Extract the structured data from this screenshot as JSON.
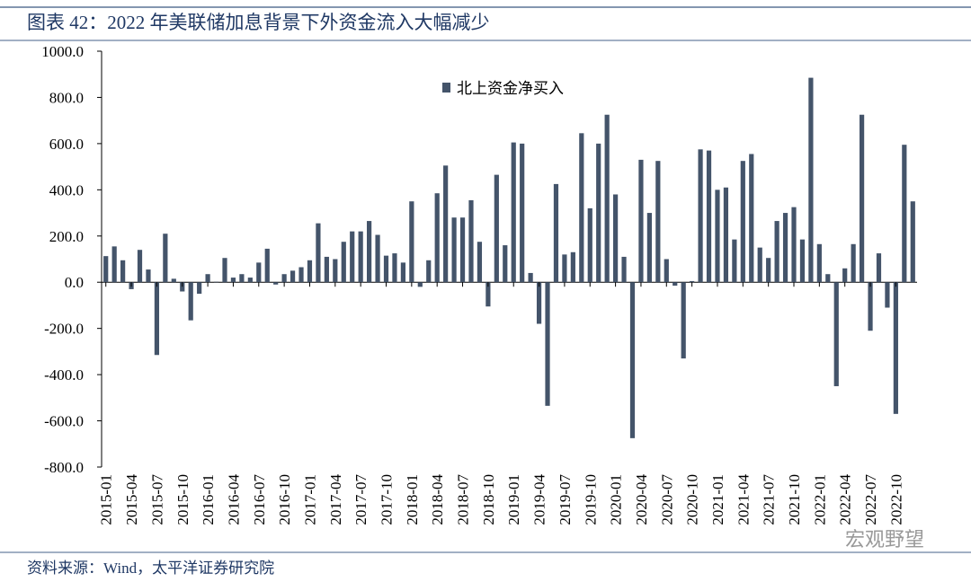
{
  "chart_data": {
    "type": "bar",
    "title": "图表 42：2022 年美联储加息背景下外资金流入大幅减少",
    "source": "资料来源：Wind，太平洋证券研究院",
    "watermark": "宏观野望",
    "categories": [
      "2015-01",
      null,
      null,
      "2015-04",
      null,
      null,
      "2015-07",
      null,
      null,
      "2015-10",
      null,
      null,
      "2016-01",
      null,
      null,
      "2016-04",
      null,
      null,
      "2016-07",
      null,
      null,
      "2016-10",
      null,
      null,
      "2017-01",
      null,
      null,
      "2017-04",
      null,
      null,
      "2017-07",
      null,
      null,
      "2017-10",
      null,
      null,
      "2018-01",
      null,
      null,
      "2018-04",
      null,
      null,
      "2018-07",
      null,
      null,
      "2018-10",
      null,
      null,
      "2019-01",
      null,
      null,
      "2019-04",
      null,
      null,
      "2019-07",
      null,
      null,
      "2019-10",
      null,
      null,
      "2020-01",
      null,
      null,
      "2020-04",
      null,
      null,
      "2020-07",
      null,
      null,
      "2020-10",
      null,
      null,
      "2021-01",
      null,
      null,
      "2021-04",
      null,
      null,
      "2021-07",
      null,
      null,
      "2021-10",
      null,
      null,
      "2022-01",
      null,
      null,
      "2022-04",
      null,
      null,
      "2022-07",
      null,
      null,
      "2022-10",
      null,
      null
    ],
    "series": [
      {
        "name": "北上资金净买入",
        "color": "#44546a",
        "values": [
          113,
          155,
          95,
          -30,
          140,
          55,
          -315,
          210,
          15,
          -40,
          -165,
          -50,
          35,
          2,
          105,
          20,
          35,
          20,
          85,
          145,
          -10,
          35,
          50,
          65,
          95,
          255,
          110,
          100,
          175,
          220,
          220,
          265,
          205,
          115,
          125,
          85,
          350,
          -20,
          95,
          385,
          505,
          280,
          280,
          355,
          175,
          -105,
          465,
          160,
          605,
          600,
          40,
          -180,
          -535,
          425,
          120,
          130,
          645,
          320,
          600,
          725,
          380,
          110,
          -675,
          530,
          300,
          525,
          100,
          -15,
          -330,
          5,
          575,
          570,
          400,
          410,
          185,
          525,
          555,
          150,
          105,
          265,
          300,
          325,
          185,
          885,
          165,
          35,
          -450,
          60,
          165,
          725,
          -210,
          125,
          -110,
          -570,
          595,
          350
        ]
      }
    ],
    "ylim": [
      -800,
      1000
    ],
    "yticks": [
      {
        "value": -800,
        "label": "-800.0"
      },
      {
        "value": -600,
        "label": "-600.0"
      },
      {
        "value": -400,
        "label": "-400.0"
      },
      {
        "value": -200,
        "label": "-200.0"
      },
      {
        "value": 0,
        "label": "0.0"
      },
      {
        "value": 200,
        "label": "200.0"
      },
      {
        "value": 400,
        "label": "400.0"
      },
      {
        "value": 600,
        "label": "600.0"
      },
      {
        "value": 800,
        "label": "800.0"
      },
      {
        "value": 1000,
        "label": "1000.0"
      }
    ],
    "grid": false
  }
}
